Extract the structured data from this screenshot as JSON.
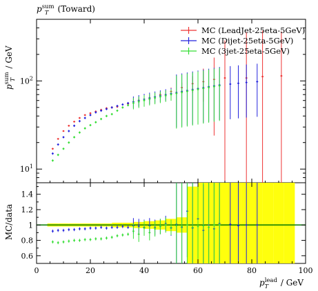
{
  "chart_data": {
    "type": "scatter",
    "title": "p_T^sum (Toward)",
    "title_parts": {
      "main": "p",
      "sub": "T",
      "sup": "sum",
      "suffix": "(Toward)"
    },
    "ylabel_parts": {
      "main": "p",
      "sub": "T",
      "sup": "sum",
      "suffix": "/ GeV"
    },
    "ratio_ylabel": "MC/data",
    "xlabel_parts": {
      "main": "p",
      "sub": "T",
      "sup": "lead",
      "suffix": "/ GeV"
    },
    "xlim": [
      0,
      100
    ],
    "ylim_main": [
      7,
      500
    ],
    "ylog_main": true,
    "ylim_ratio": [
      0.5,
      1.55
    ],
    "x_ticks": [
      "0",
      "20",
      "40",
      "60",
      "80",
      "100"
    ],
    "y_ticks_main": [
      "10^1",
      "10^2"
    ],
    "y_ticks_ratio": [
      "0.6",
      "0.8",
      "1",
      "1.2",
      "1.4"
    ],
    "legend_position": "top-right",
    "colors": {
      "leadjet": "#ee3333",
      "dijet": "#2222dd",
      "threejet": "#33dd33",
      "data_band": "#ffff00",
      "reference": "#007700"
    },
    "series": [
      {
        "name": "MC (LeadJet-25eta-5GeV)",
        "color": "#ee3333",
        "x": [
          6,
          8,
          10,
          12,
          14,
          16,
          18,
          20,
          22,
          24,
          26,
          28,
          30,
          34,
          38,
          42,
          46,
          50,
          54,
          58,
          62,
          66,
          70,
          78,
          84,
          91
        ],
        "y": [
          17,
          22,
          27,
          31,
          34.5,
          38,
          41,
          43,
          45,
          47,
          49,
          50,
          51,
          55,
          60,
          64,
          70,
          76,
          84,
          93,
          98,
          104,
          108,
          108,
          112,
          114
        ],
        "yerr": [
          0.4,
          0.5,
          0.6,
          0.7,
          0.8,
          0.9,
          1.0,
          1.1,
          1.2,
          1.3,
          1.4,
          1.5,
          1.6,
          2,
          3,
          4,
          6,
          8,
          12,
          20,
          40,
          80,
          180,
          250,
          260,
          250
        ]
      },
      {
        "name": "MC (Dijet-25eta-5GeV)",
        "color": "#2222dd",
        "x": [
          6,
          8,
          10,
          12,
          14,
          16,
          18,
          20,
          22,
          24,
          26,
          28,
          30,
          32,
          34,
          36,
          38,
          40,
          42,
          44,
          46,
          48,
          50,
          52,
          54,
          56,
          58,
          60,
          62,
          64,
          66,
          68,
          72,
          75,
          78,
          82
        ],
        "y": [
          15,
          19,
          23,
          27,
          31,
          35,
          38,
          41,
          44,
          46,
          48,
          50,
          52,
          54,
          56,
          58,
          60,
          62,
          64,
          66,
          68,
          70,
          72,
          74,
          76,
          78,
          80,
          82,
          84,
          86,
          88,
          90,
          92,
          94,
          96,
          98
        ],
        "ratio": [
          0.92,
          0.93,
          0.93,
          0.94,
          0.94,
          0.95,
          0.95,
          0.96,
          0.96,
          0.97,
          0.96,
          0.97,
          0.97,
          0.98,
          0.97,
          0.99,
          0.98,
          0.97,
          0.99,
          0.97,
          0.98,
          1.02,
          0.96,
          1.01,
          0.97,
          1.18,
          0.96,
          1.08,
          0.93,
          1.0,
          0.95,
          1.02,
          1.01,
          0.99,
          1.0,
          1.0
        ]
      },
      {
        "name": "MC (3jet-25eta-5GeV)",
        "color": "#33dd33",
        "x": [
          6,
          8,
          10,
          12,
          14,
          16,
          18,
          20,
          22,
          24,
          26,
          28,
          30,
          32,
          34,
          36,
          38,
          40,
          42,
          44,
          46,
          48,
          50,
          52,
          54,
          56,
          58,
          60,
          62,
          64,
          66,
          68
        ],
        "y": [
          12.5,
          14.5,
          17,
          20,
          23,
          26,
          29,
          31.5,
          34,
          37,
          40,
          42,
          46,
          50,
          53,
          56,
          58,
          60,
          62,
          64,
          66,
          68,
          70,
          72,
          74,
          76,
          78,
          80,
          82,
          84,
          86,
          88
        ],
        "ratio": [
          0.78,
          0.77,
          0.78,
          0.79,
          0.8,
          0.8,
          0.81,
          0.81,
          0.82,
          0.82,
          0.83,
          0.84,
          0.86,
          0.87,
          0.88,
          0.92,
          0.88,
          0.96,
          0.9,
          0.95,
          0.98,
          1.0,
          0.97,
          0.99,
          0.98,
          1.0,
          0.97,
          0.98,
          0.99,
          0.97,
          1.0,
          1.0
        ]
      }
    ],
    "data_band": {
      "x": [
        6,
        10,
        14,
        18,
        22,
        26,
        30,
        34,
        38,
        42,
        46,
        50,
        54,
        58,
        62,
        66,
        70,
        74,
        78,
        82,
        86,
        90,
        94
      ],
      "ratio_err": [
        0.02,
        0.02,
        0.02,
        0.02,
        0.02,
        0.02,
        0.03,
        0.03,
        0.04,
        0.05,
        0.06,
        0.08,
        0.1,
        0.5,
        0.6,
        0.6,
        0.6,
        0.6,
        0.6,
        0.6,
        0.6,
        0.6,
        0.6
      ]
    }
  }
}
